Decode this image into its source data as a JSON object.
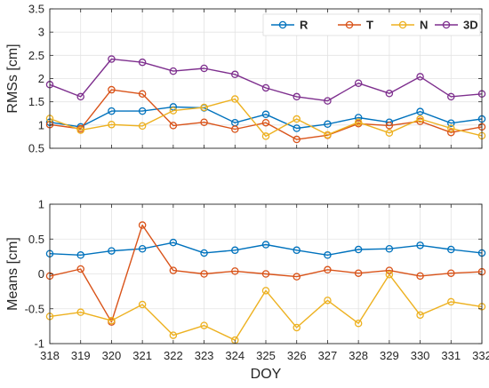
{
  "chart_data": [
    {
      "type": "line",
      "ylabel": "RMSs [cm]",
      "xlabel": "",
      "x": [
        318,
        319,
        320,
        321,
        322,
        323,
        324,
        325,
        326,
        327,
        328,
        329,
        330,
        331,
        332
      ],
      "xlim": [
        318,
        332
      ],
      "ylim": [
        0.5,
        3.5
      ],
      "yticks": [
        0.5,
        1,
        1.5,
        2,
        2.5,
        3,
        3.5
      ],
      "grid": true,
      "legend": "top-right, horizontal",
      "series": [
        {
          "name": "R",
          "color": "#0072BD",
          "values": [
            1.06,
            0.96,
            1.3,
            1.3,
            1.39,
            1.37,
            1.05,
            1.23,
            0.93,
            1.02,
            1.16,
            1.06,
            1.29,
            1.04,
            1.13
          ]
        },
        {
          "name": "T",
          "color": "#D95319",
          "values": [
            1.01,
            0.92,
            1.76,
            1.67,
            0.99,
            1.06,
            0.91,
            1.05,
            0.69,
            0.78,
            1.03,
            0.99,
            1.08,
            0.84,
            0.96
          ]
        },
        {
          "name": "N",
          "color": "#EDB120",
          "values": [
            1.14,
            0.89,
            1.01,
            0.98,
            1.31,
            1.38,
            1.56,
            0.76,
            1.13,
            0.79,
            1.06,
            0.83,
            1.13,
            0.93,
            0.77
          ]
        },
        {
          "name": "3D",
          "color": "#7E2F8E",
          "values": [
            1.87,
            1.61,
            2.42,
            2.35,
            2.16,
            2.22,
            2.09,
            1.8,
            1.61,
            1.52,
            1.9,
            1.68,
            2.04,
            1.61,
            1.67
          ]
        }
      ]
    },
    {
      "type": "line",
      "ylabel": "Means [cm]",
      "xlabel": "DOY",
      "x": [
        318,
        319,
        320,
        321,
        322,
        323,
        324,
        325,
        326,
        327,
        328,
        329,
        330,
        331,
        332
      ],
      "xlim": [
        318,
        332
      ],
      "ylim": [
        -1,
        1
      ],
      "yticks": [
        -1,
        -0.5,
        0,
        0.5,
        1
      ],
      "grid": true,
      "series": [
        {
          "color": "#0072BD",
          "values": [
            0.29,
            0.27,
            0.33,
            0.36,
            0.45,
            0.3,
            0.34,
            0.42,
            0.34,
            0.27,
            0.35,
            0.36,
            0.41,
            0.35,
            0.3
          ]
        },
        {
          "color": "#D95319",
          "values": [
            -0.03,
            0.07,
            -0.69,
            0.7,
            0.05,
            0.0,
            0.04,
            0.0,
            -0.04,
            0.06,
            0.01,
            0.05,
            -0.03,
            0.01,
            0.03
          ]
        },
        {
          "color": "#EDB120",
          "values": [
            -0.61,
            -0.55,
            -0.67,
            -0.44,
            -0.88,
            -0.74,
            -0.95,
            -0.24,
            -0.77,
            -0.38,
            -0.71,
            -0.01,
            -0.59,
            -0.4,
            -0.47
          ]
        }
      ]
    }
  ]
}
